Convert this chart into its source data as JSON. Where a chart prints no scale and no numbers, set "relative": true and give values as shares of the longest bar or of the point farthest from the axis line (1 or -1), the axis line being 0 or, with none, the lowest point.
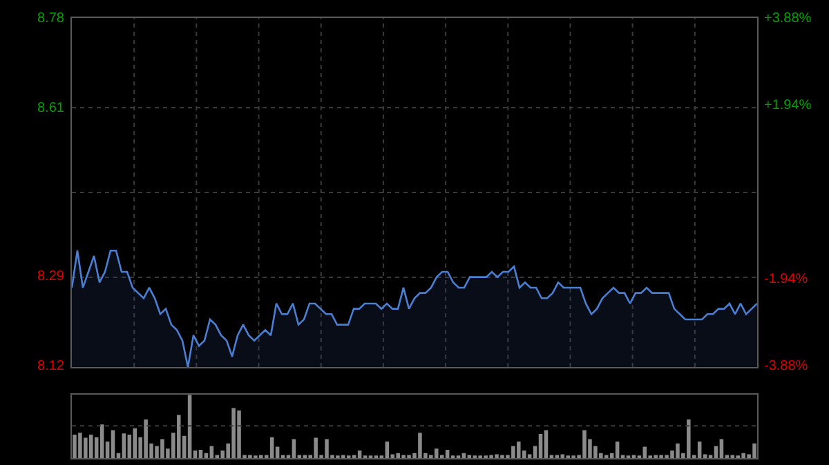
{
  "chart_data": [
    {
      "type": "area",
      "categories": [
        null,
        null,
        null,
        null,
        null,
        null,
        null,
        null,
        null,
        null,
        null,
        null,
        null,
        null,
        null,
        null,
        null,
        null,
        null,
        null,
        null,
        null,
        null,
        null,
        null,
        null,
        null,
        null,
        null,
        null,
        null,
        null,
        null,
        null,
        null,
        null,
        null,
        null,
        null,
        null,
        null,
        null,
        null,
        null,
        null,
        null,
        null,
        null,
        null,
        null,
        null,
        null,
        null,
        null,
        null,
        null,
        null,
        null,
        null,
        null,
        null,
        null,
        null,
        null,
        null,
        null,
        null,
        null,
        null,
        null,
        null,
        null,
        null,
        null,
        null,
        null,
        null,
        null,
        null,
        null,
        null,
        null,
        null,
        null,
        null,
        null,
        null,
        null,
        null,
        null,
        null,
        null,
        null,
        null,
        null,
        null,
        null,
        null,
        null,
        null,
        null,
        null,
        null,
        null,
        null,
        null,
        null,
        null,
        null,
        null,
        null,
        null,
        null,
        null,
        null,
        null,
        null,
        null,
        null,
        null,
        null,
        null,
        null,
        null,
        null
      ],
      "series": [
        {
          "color": "#4a7fd4",
          "values": [
            8.27,
            8.34,
            8.27,
            8.3,
            8.33,
            8.28,
            8.3,
            8.34,
            8.34,
            8.3,
            8.3,
            8.27,
            8.26,
            8.25,
            8.27,
            8.25,
            8.22,
            8.23,
            8.2,
            8.19,
            8.17,
            8.12,
            8.18,
            8.16,
            8.17,
            8.21,
            8.2,
            8.18,
            8.17,
            8.14,
            8.18,
            8.2,
            8.18,
            8.17,
            8.18,
            8.19,
            8.18,
            8.24,
            8.22,
            8.22,
            8.24,
            8.2,
            8.21,
            8.24,
            8.24,
            8.23,
            8.22,
            8.22,
            8.2,
            8.2,
            8.2,
            8.23,
            8.23,
            8.24,
            8.24,
            8.24,
            8.23,
            8.24,
            8.23,
            8.23,
            8.27,
            8.23,
            8.25,
            8.26,
            8.26,
            8.27,
            8.29,
            8.3,
            8.3,
            8.28,
            8.27,
            8.27,
            8.29,
            8.29,
            8.29,
            8.29,
            8.3,
            8.29,
            8.3,
            8.3,
            8.31,
            8.27,
            8.28,
            8.27,
            8.27,
            8.25,
            8.25,
            8.26,
            8.28,
            8.27,
            8.27,
            8.27,
            8.27,
            8.24,
            8.22,
            8.23,
            8.25,
            8.26,
            8.27,
            8.26,
            8.26,
            8.24,
            8.26,
            8.26,
            8.27,
            8.26,
            8.26,
            8.26,
            8.26,
            8.23,
            8.22,
            8.21,
            8.21,
            8.21,
            8.21,
            8.22,
            8.22,
            8.23,
            8.23,
            8.24,
            8.22,
            8.24,
            8.22,
            8.23,
            8.24
          ]
        }
      ],
      "ylim": [
        8.12,
        8.78
      ],
      "yticks": [
        8.78,
        8.61,
        {
          "value": 8.45,
          "label": null
        },
        8.29,
        8.12
      ],
      "y2lim": [
        -3.88,
        3.88
      ],
      "y2ticks": [
        {
          "value": 3.88,
          "label": "+3.88%"
        },
        {
          "value": 1.94,
          "label": "+1.94%"
        },
        {
          "value": -1.94,
          "label": "-1.94%"
        },
        {
          "value": -3.88,
          "label": "-3.88%"
        }
      ],
      "grid": true,
      "tick_labels": "y"
    },
    {
      "type": "bar",
      "relative": true,
      "categories": [
        null,
        null,
        null,
        null,
        null,
        null,
        null,
        null,
        null,
        null,
        null,
        null,
        null,
        null,
        null,
        null,
        null,
        null,
        null,
        null,
        null,
        null,
        null,
        null,
        null,
        null,
        null,
        null,
        null,
        null,
        null,
        null,
        null,
        null,
        null,
        null,
        null,
        null,
        null,
        null,
        null,
        null,
        null,
        null,
        null,
        null,
        null,
        null,
        null,
        null,
        null,
        null,
        null,
        null,
        null,
        null,
        null,
        null,
        null,
        null,
        null,
        null,
        null,
        null,
        null,
        null,
        null,
        null,
        null,
        null,
        null,
        null,
        null,
        null,
        null,
        null,
        null,
        null,
        null,
        null,
        null,
        null,
        null,
        null,
        null,
        null,
        null,
        null,
        null,
        null,
        null,
        null,
        null,
        null,
        null,
        null,
        null,
        null,
        null,
        null,
        null,
        null,
        null,
        null,
        null,
        null,
        null,
        null,
        null,
        null,
        null,
        null,
        null,
        null,
        null,
        null,
        null,
        null,
        null,
        null,
        null,
        null,
        null,
        null,
        null
      ],
      "series": [
        {
          "color": "#8a8a8a",
          "values": [
            0.37,
            0.4,
            0.32,
            0.37,
            0.33,
            0.53,
            0.26,
            0.44,
            0.08,
            0.39,
            0.37,
            0.47,
            0.33,
            0.61,
            0.23,
            0.19,
            0.3,
            0.15,
            0.4,
            0.68,
            0.35,
            1.0,
            0.12,
            0.13,
            0.08,
            0.19,
            0.05,
            0.12,
            0.23,
            0.79,
            0.75,
            0.05,
            0.05,
            0.04,
            0.05,
            0.05,
            0.33,
            0.18,
            0.05,
            0.05,
            0.3,
            0.05,
            0.05,
            0.05,
            0.32,
            0.05,
            0.3,
            0.05,
            0.04,
            0.05,
            0.04,
            0.05,
            0.12,
            0.03,
            0.03,
            0.03,
            0.03,
            0.26,
            0.06,
            0.08,
            0.05,
            0.05,
            0.08,
            0.4,
            0.08,
            0.05,
            0.15,
            0.05,
            0.13,
            0.04,
            0.04,
            0.08,
            0.05,
            0.04,
            0.04,
            0.04,
            0.05,
            0.06,
            0.05,
            0.05,
            0.19,
            0.26,
            0.12,
            0.06,
            0.19,
            0.38,
            0.44,
            0.05,
            0.05,
            0.06,
            0.04,
            0.04,
            0.05,
            0.44,
            0.3,
            0.19,
            0.08,
            0.05,
            0.08,
            0.26,
            0.05,
            0.04,
            0.05,
            0.04,
            0.18,
            0.04,
            0.05,
            0.05,
            0.05,
            0.12,
            0.23,
            0.08,
            0.61,
            0.05,
            0.26,
            0.06,
            0.05,
            0.19,
            0.3,
            0.05,
            0.05,
            0.04,
            0.08,
            0.06,
            0.23
          ]
        }
      ],
      "ref_lines": [
        {
          "axis": "y",
          "value": 0.51,
          "color": "#3a3a3a",
          "line_style": "dotted"
        }
      ],
      "tick_labels": false
    }
  ]
}
